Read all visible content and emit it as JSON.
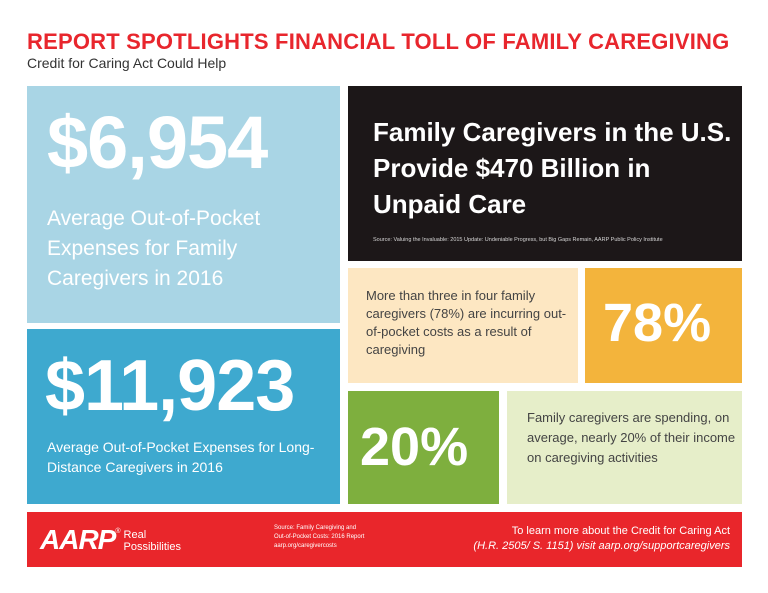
{
  "header": {
    "title": "REPORT SPOTLIGHTS FINANCIAL TOLL OF FAMILY CAREGIVING",
    "subtitle": "Credit for Caring Act Could Help"
  },
  "tiles": {
    "average_expenses": {
      "value": "$6,954",
      "text": "Average Out-of-Pocket Expenses for Family Caregivers in 2016"
    },
    "long_distance": {
      "value": "$11,923",
      "text": "Average Out-of-Pocket Expenses for Long-Distance Caregivers in 2016"
    },
    "unpaid_care": {
      "headline": "Family Caregivers in the U.S. Provide $470 Billion in Unpaid Care",
      "source": "Source: Valuing the Invaluable: 2015 Update: Undeniable Progress, but Big Gaps Remain, AARP Public Policy Institute"
    },
    "out_of_pocket_share": {
      "text": "More than three in four family caregivers (78%) are incurring out-of-pocket costs as a result of caregiving",
      "value": "78%"
    },
    "income_share": {
      "value": "20%",
      "text": "Family caregivers are spending, on average, nearly 20% of their income on caregiving activities"
    }
  },
  "footer": {
    "logo": "AARP",
    "logo_mark": "®",
    "tagline_line1": "Real",
    "tagline_line2": "Possibilities",
    "source_line1": "Source: Family Caregiving and",
    "source_line2": "Out-of-Pocket Costs: 2016 Report",
    "source_line3": "aarp.org/caregivercosts",
    "cta_line1": "To learn more about the Credit for Caring Act",
    "cta_line2": "(H.R. 2505/ S. 1151) visit aarp.org/supportcaregivers"
  },
  "colors": {
    "title_red": "#e8262d",
    "light_blue": "#a9d5e5",
    "blue": "#3ea9cf",
    "black": "#1c1718",
    "peach": "#fde7c2",
    "amber": "#f3b43c",
    "green": "#7eaf3e",
    "pale_green": "#e6eec9",
    "footer_red": "#e9262b"
  }
}
